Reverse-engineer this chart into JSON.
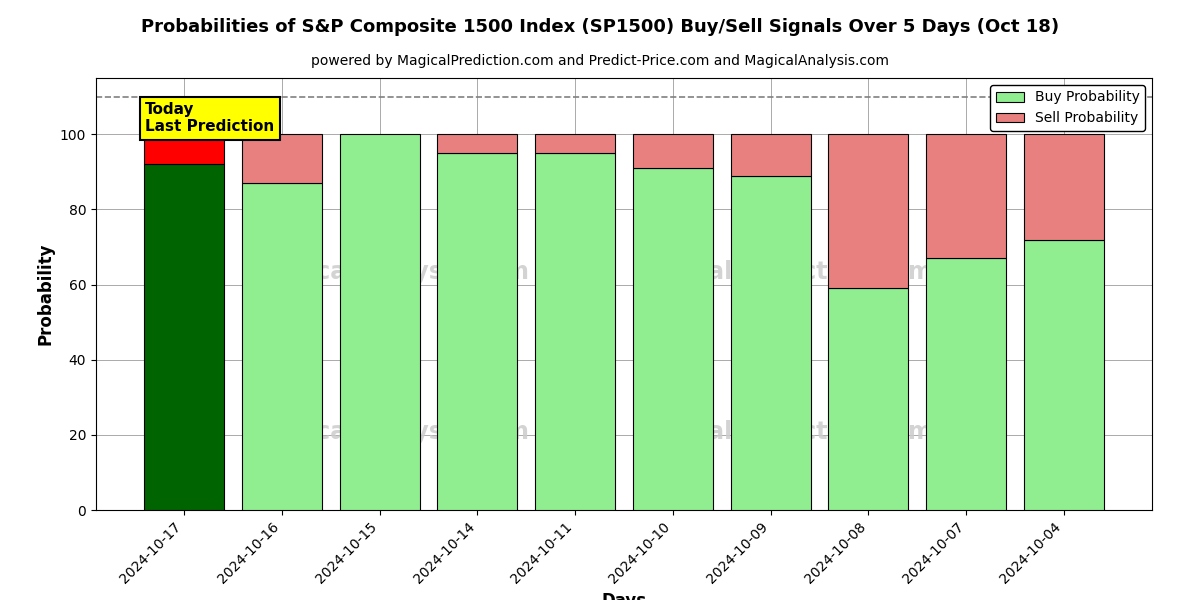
{
  "title": "Probabilities of S&P Composite 1500 Index (SP1500) Buy/Sell Signals Over 5 Days (Oct 18)",
  "subtitle": "powered by MagicalPrediction.com and Predict-Price.com and MagicalAnalysis.com",
  "xlabel": "Days",
  "ylabel": "Probability",
  "dates": [
    "2024-10-17",
    "2024-10-16",
    "2024-10-15",
    "2024-10-14",
    "2024-10-11",
    "2024-10-10",
    "2024-10-09",
    "2024-10-08",
    "2024-10-07",
    "2024-10-04"
  ],
  "buy_values": [
    92,
    87,
    100,
    95,
    95,
    91,
    89,
    59,
    67,
    72
  ],
  "sell_values": [
    8,
    13,
    0,
    5,
    5,
    9,
    11,
    41,
    33,
    28
  ],
  "buy_color_today": "#006400",
  "sell_color_today": "#FF0000",
  "buy_color_normal": "#90EE90",
  "sell_color_normal": "#E88080",
  "bar_edge_color": "#000000",
  "today_label_bg": "#FFFF00",
  "today_label_text": "Today\nLast Prediction",
  "legend_buy_label": "Buy Probability",
  "legend_sell_label": "Sell Probability",
  "ylim": [
    0,
    115
  ],
  "dashed_line_y": 110,
  "grid_color": "#AAAAAA",
  "watermark_color": "#CCCCCC"
}
